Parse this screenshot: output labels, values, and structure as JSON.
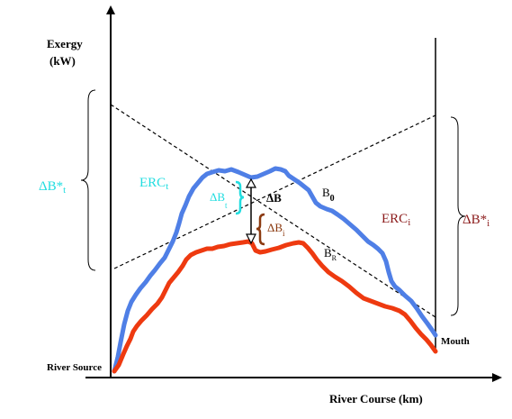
{
  "axes": {
    "y_label_line1": "Exergy",
    "y_label_line2": "(kW)",
    "x_label": "River Course (km)",
    "origin_label": "River Source",
    "mouth_label": "Mouth"
  },
  "labels": {
    "erc_t_main": "ERC",
    "erc_t_sub": "t",
    "erc_i_main": "ERC",
    "erc_i_sub": "i",
    "db_star_t_main": "ΔB*",
    "db_star_t_sub": "t",
    "db_star_i_main": "ΔB*",
    "db_star_i_sub": "i",
    "db_t_main": "ΔB",
    "db_t_sub": "t",
    "db_main": "ΔB",
    "db_i_main": "ΔB",
    "db_i_sub": "i",
    "b0_main": "B",
    "b0_sub": "0",
    "br_main": "B",
    "br_sub": "R"
  },
  "colors": {
    "blue_curve": "#4f7fe6",
    "red_curve": "#ee3a10",
    "cyan": "#22dde0",
    "dark_red": "#8b1a1a",
    "brown": "#8b3a10",
    "black": "#000000"
  }
}
